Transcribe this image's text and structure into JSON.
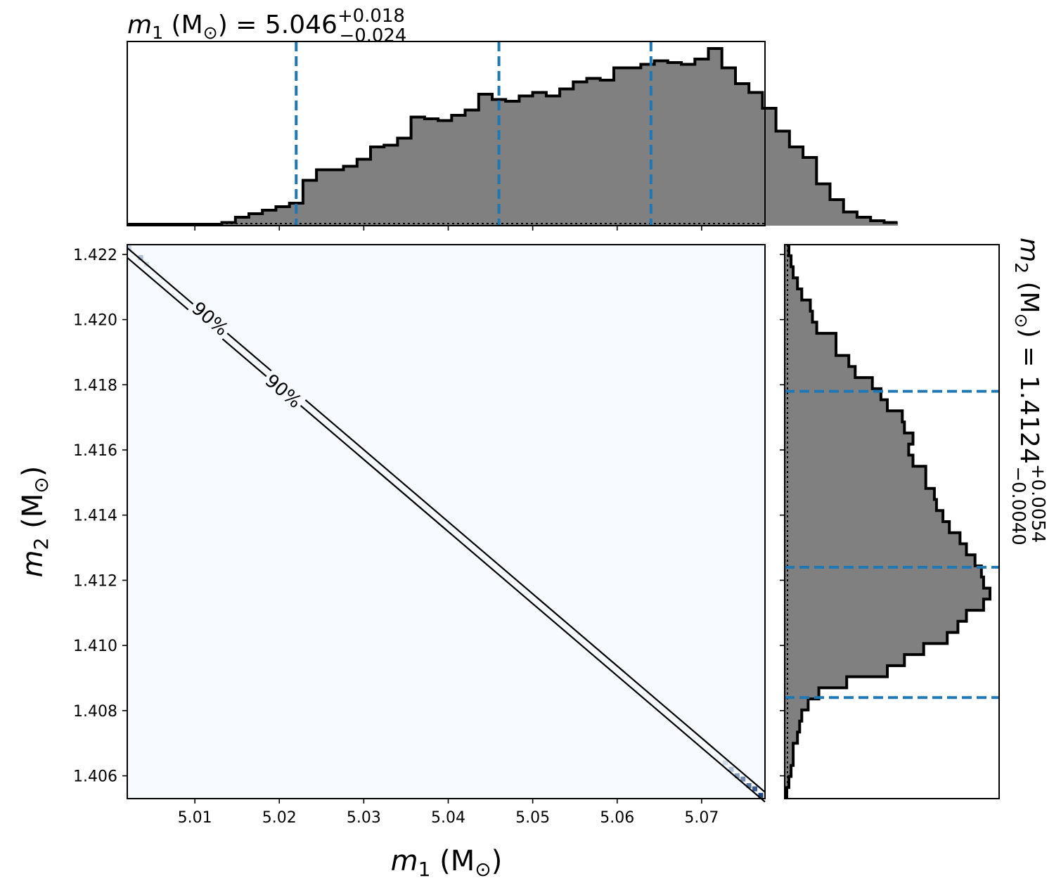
{
  "chart_data": [
    {
      "type": "area",
      "panel": "m1-marginal",
      "title": {
        "main": "m",
        "sub": "1",
        "rest": " (M",
        "sun": "⊙",
        "rest2": ") = 5.046",
        "sup": "+0.018",
        "subscript": "−0.024"
      },
      "xlim": [
        5.002,
        5.0775
      ],
      "bin_edges_start": 5.002,
      "bin_width": 0.0016,
      "values": [
        0,
        0,
        0,
        0,
        0,
        0,
        0,
        0.01,
        0.04,
        0.06,
        0.08,
        0.1,
        0.12,
        0.25,
        0.31,
        0.31,
        0.33,
        0.37,
        0.44,
        0.45,
        0.49,
        0.61,
        0.6,
        0.59,
        0.62,
        0.65,
        0.74,
        0.71,
        0.7,
        0.73,
        0.75,
        0.73,
        0.77,
        0.81,
        0.83,
        0.82,
        0.89,
        0.89,
        0.91,
        0.93,
        0.92,
        0.91,
        0.94,
        1.0,
        0.89,
        0.8,
        0.75,
        0.66,
        0.53,
        0.44,
        0.38,
        0.23,
        0.14,
        0.07,
        0.04,
        0.02,
        0.01
      ],
      "quantiles": [
        5.022,
        5.046,
        5.064
      ],
      "quantile_color": "#1f77b4",
      "fill_color": "#808080"
    },
    {
      "type": "heatmap",
      "panel": "joint",
      "xlabel": {
        "main": "m",
        "sub": "1",
        "rest": " (M",
        "sun": "⊙",
        "rest2": ")"
      },
      "ylabel": {
        "main": "m",
        "sub": "2",
        "rest": " (M",
        "sun": "⊙",
        "rest2": ")"
      },
      "xlim": [
        5.002,
        5.0775
      ],
      "ylim": [
        1.4053,
        1.4223
      ],
      "xticks": [
        "5.01",
        "5.02",
        "5.03",
        "5.04",
        "5.05",
        "5.06",
        "5.07"
      ],
      "xtick_values": [
        5.01,
        5.02,
        5.03,
        5.04,
        5.05,
        5.06,
        5.07
      ],
      "yticks": [
        "1.406",
        "1.408",
        "1.410",
        "1.412",
        "1.414",
        "1.416",
        "1.418",
        "1.420",
        "1.422"
      ],
      "ytick_values": [
        1.406,
        1.408,
        1.41,
        1.412,
        1.414,
        1.416,
        1.418,
        1.42,
        1.422
      ],
      "contour_labels": [
        "90%",
        "90%"
      ],
      "contour_lines": [
        {
          "from": [
            5.002,
            1.4222
          ],
          "to": [
            5.0775,
            1.4055
          ]
        },
        {
          "from": [
            5.002,
            1.4219
          ],
          "to": [
            5.0775,
            1.4052
          ]
        }
      ],
      "high_density_cells": [
        {
          "x": 5.0022,
          "y": 1.4222,
          "level": 0.2
        },
        {
          "x": 5.0036,
          "y": 1.4219,
          "level": 0.3
        },
        {
          "x": 5.0043,
          "y": 1.4217,
          "level": 0.15
        },
        {
          "x": 5.0728,
          "y": 1.4064,
          "level": 0.15
        },
        {
          "x": 5.0735,
          "y": 1.4062,
          "level": 0.3
        },
        {
          "x": 5.0742,
          "y": 1.406,
          "level": 0.45
        },
        {
          "x": 5.0749,
          "y": 1.4059,
          "level": 0.55
        },
        {
          "x": 5.0756,
          "y": 1.4057,
          "level": 0.65
        },
        {
          "x": 5.0763,
          "y": 1.4056,
          "level": 0.8
        },
        {
          "x": 5.077,
          "y": 1.4054,
          "level": 0.9
        }
      ],
      "background_color": "#f7fbff",
      "colormap": "Blues"
    },
    {
      "type": "area",
      "panel": "m2-marginal",
      "orientation": "horizontal",
      "title": {
        "main": "m",
        "sub": "2",
        "rest": " (M",
        "sun": "⊙",
        "rest2": ") = 1.4124",
        "sup": "+0.0054",
        "subscript": "−0.0040"
      },
      "ylim": [
        1.4053,
        1.4223
      ],
      "bin_edges_start": 1.4053,
      "bin_width": 0.00034,
      "values": [
        0.0,
        0.01,
        0.02,
        0.03,
        0.03,
        0.05,
        0.06,
        0.07,
        0.1,
        0.15,
        0.28,
        0.47,
        0.55,
        0.64,
        0.75,
        0.8,
        0.84,
        0.92,
        0.95,
        0.92,
        0.91,
        0.88,
        0.84,
        0.81,
        0.76,
        0.73,
        0.7,
        0.69,
        0.65,
        0.65,
        0.59,
        0.57,
        0.59,
        0.55,
        0.54,
        0.47,
        0.44,
        0.4,
        0.32,
        0.29,
        0.23,
        0.23,
        0.14,
        0.12,
        0.11,
        0.07,
        0.05,
        0.03,
        0.02,
        0.01
      ],
      "quantiles": [
        1.4084,
        1.4124,
        1.4178
      ],
      "quantile_color": "#1f77b4",
      "fill_color": "#808080"
    }
  ]
}
